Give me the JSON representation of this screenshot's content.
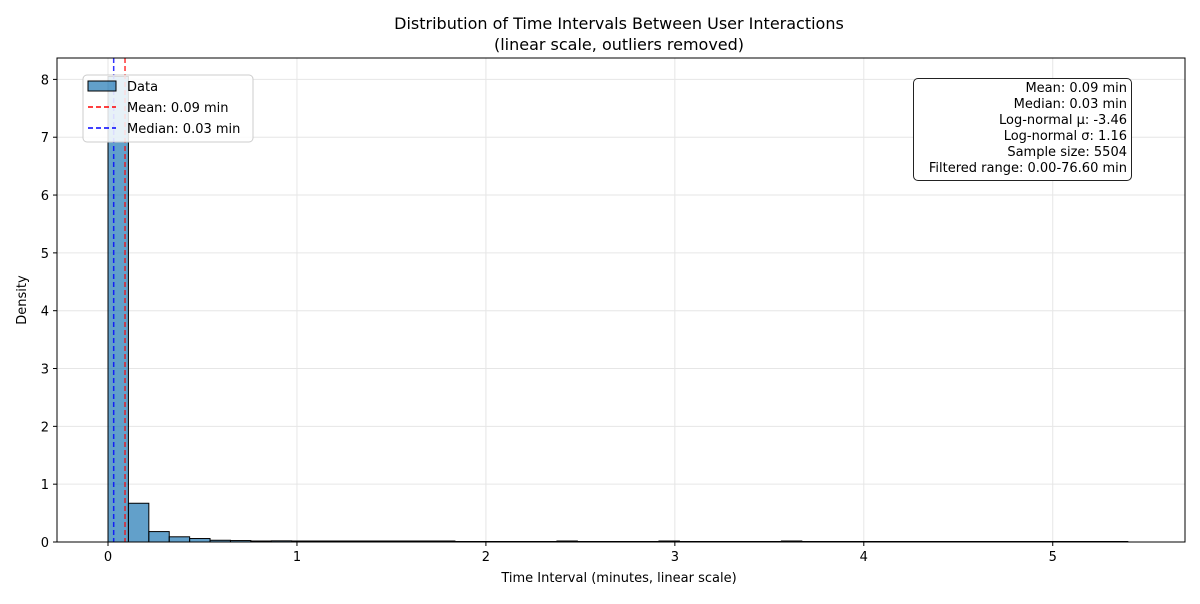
{
  "chart_data": {
    "type": "bar",
    "title": "Distribution of Time Intervals Between User Interactions",
    "subtitle": "(linear scale, outliers removed)",
    "xlabel": "Time Interval (minutes, linear scale)",
    "ylabel": "Density",
    "xlim": [
      -0.27,
      5.7
    ],
    "ylim": [
      0,
      8.37
    ],
    "xticks": [
      0,
      1,
      2,
      3,
      4,
      5
    ],
    "yticks": [
      0,
      1,
      2,
      3,
      4,
      5,
      6,
      7,
      8
    ],
    "grid": true,
    "bin_width": 0.108,
    "bar_color": "#1f77b4",
    "bins": [
      {
        "x0": 0.0,
        "x1": 0.108,
        "density": 8.05
      },
      {
        "x0": 0.108,
        "x1": 0.216,
        "density": 0.67
      },
      {
        "x0": 0.216,
        "x1": 0.324,
        "density": 0.18
      },
      {
        "x0": 0.324,
        "x1": 0.432,
        "density": 0.09
      },
      {
        "x0": 0.432,
        "x1": 0.54,
        "density": 0.06
      },
      {
        "x0": 0.54,
        "x1": 0.648,
        "density": 0.03
      },
      {
        "x0": 0.648,
        "x1": 0.756,
        "density": 0.025
      },
      {
        "x0": 0.756,
        "x1": 0.864,
        "density": 0.01
      },
      {
        "x0": 0.864,
        "x1": 0.972,
        "density": 0.02
      },
      {
        "x0": 0.972,
        "x1": 1.08,
        "density": 0.01
      },
      {
        "x0": 1.08,
        "x1": 1.188,
        "density": 0.008
      },
      {
        "x0": 1.188,
        "x1": 1.296,
        "density": 0.008
      },
      {
        "x0": 1.296,
        "x1": 1.404,
        "density": 0.006
      },
      {
        "x0": 1.404,
        "x1": 1.512,
        "density": 0.006
      },
      {
        "x0": 1.512,
        "x1": 1.62,
        "density": 0.005
      },
      {
        "x0": 1.62,
        "x1": 1.728,
        "density": 0.005
      },
      {
        "x0": 1.728,
        "x1": 1.836,
        "density": 0.004
      },
      {
        "x0": 2.376,
        "x1": 2.484,
        "density": 0.006
      },
      {
        "x0": 2.916,
        "x1": 3.024,
        "density": 0.006
      },
      {
        "x0": 3.564,
        "x1": 3.672,
        "density": 0.006
      }
    ],
    "baseline_span": [
      1.836,
      5.4
    ],
    "reference_lines": [
      {
        "name": "Mean: 0.09 min",
        "x": 0.09,
        "color": "#ff0000",
        "style": "dashed"
      },
      {
        "name": "Median: 0.03 min",
        "x": 0.03,
        "color": "#0000ff",
        "style": "dashed"
      }
    ],
    "legend": {
      "placement": "upper-left",
      "entries": [
        {
          "label": "Data",
          "kind": "patch",
          "color": "#1f77b4"
        },
        {
          "label": "Mean: 0.09 min",
          "kind": "dashed-line",
          "color": "#ff0000"
        },
        {
          "label": "Median: 0.03 min",
          "kind": "dashed-line",
          "color": "#0000ff"
        }
      ]
    },
    "stats_box": {
      "placement": "upper-right",
      "lines": [
        "Mean: 0.09 min",
        "Median: 0.03 min",
        "Log-normal μ: -3.46",
        "Log-normal σ: 1.16",
        "Sample size: 5504",
        "Filtered range: 0.00-76.60 min"
      ]
    }
  }
}
